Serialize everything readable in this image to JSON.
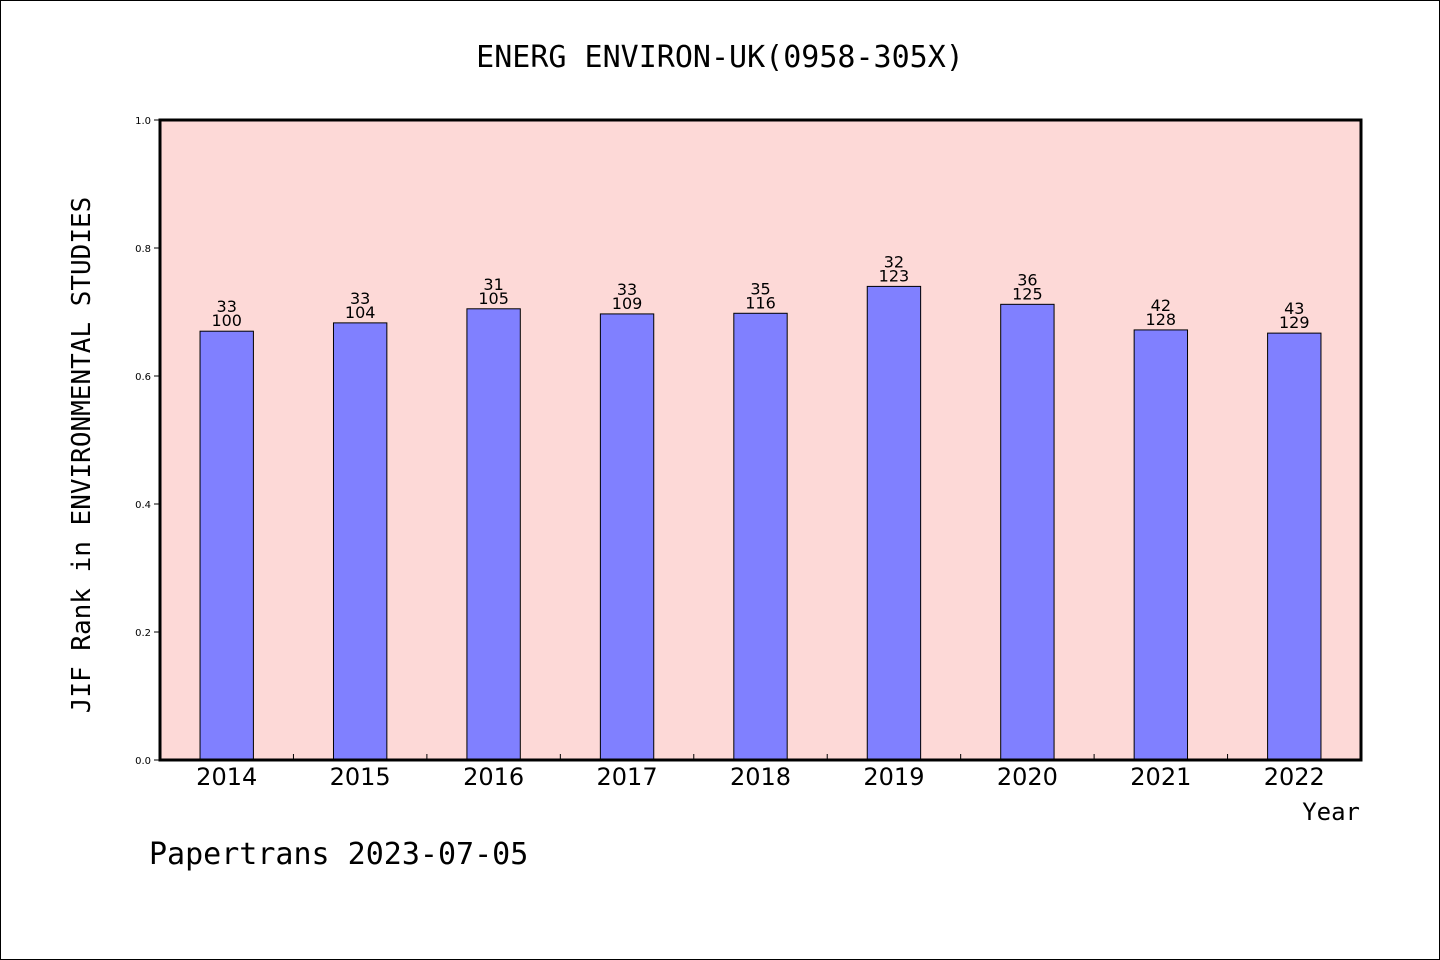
{
  "chart_data": {
    "type": "bar",
    "title": "ENERG ENVIRON-UK(0958-305X)",
    "xlabel": "Year",
    "ylabel": "JIF Rank in ENVIRONMENTAL STUDIES",
    "ylim": [
      0,
      1.0
    ],
    "yticks": [
      "0.0",
      "0.2",
      "0.4",
      "0.6",
      "0.8",
      "1.0"
    ],
    "categories": [
      "2014",
      "2015",
      "2016",
      "2017",
      "2018",
      "2019",
      "2020",
      "2021",
      "2022"
    ],
    "values": [
      0.67,
      0.683,
      0.705,
      0.697,
      0.698,
      0.74,
      0.712,
      0.672,
      0.667
    ],
    "rank": [
      "33",
      "33",
      "31",
      "33",
      "35",
      "32",
      "36",
      "42",
      "43"
    ],
    "total": [
      "100",
      "104",
      "105",
      "109",
      "116",
      "123",
      "125",
      "128",
      "129"
    ],
    "grid": false,
    "colors": {
      "plot_bg": "#FDD9D7",
      "bar": "#8080FF",
      "bar_edge": "#000000"
    }
  },
  "footer": "Papertrans 2023-07-05"
}
